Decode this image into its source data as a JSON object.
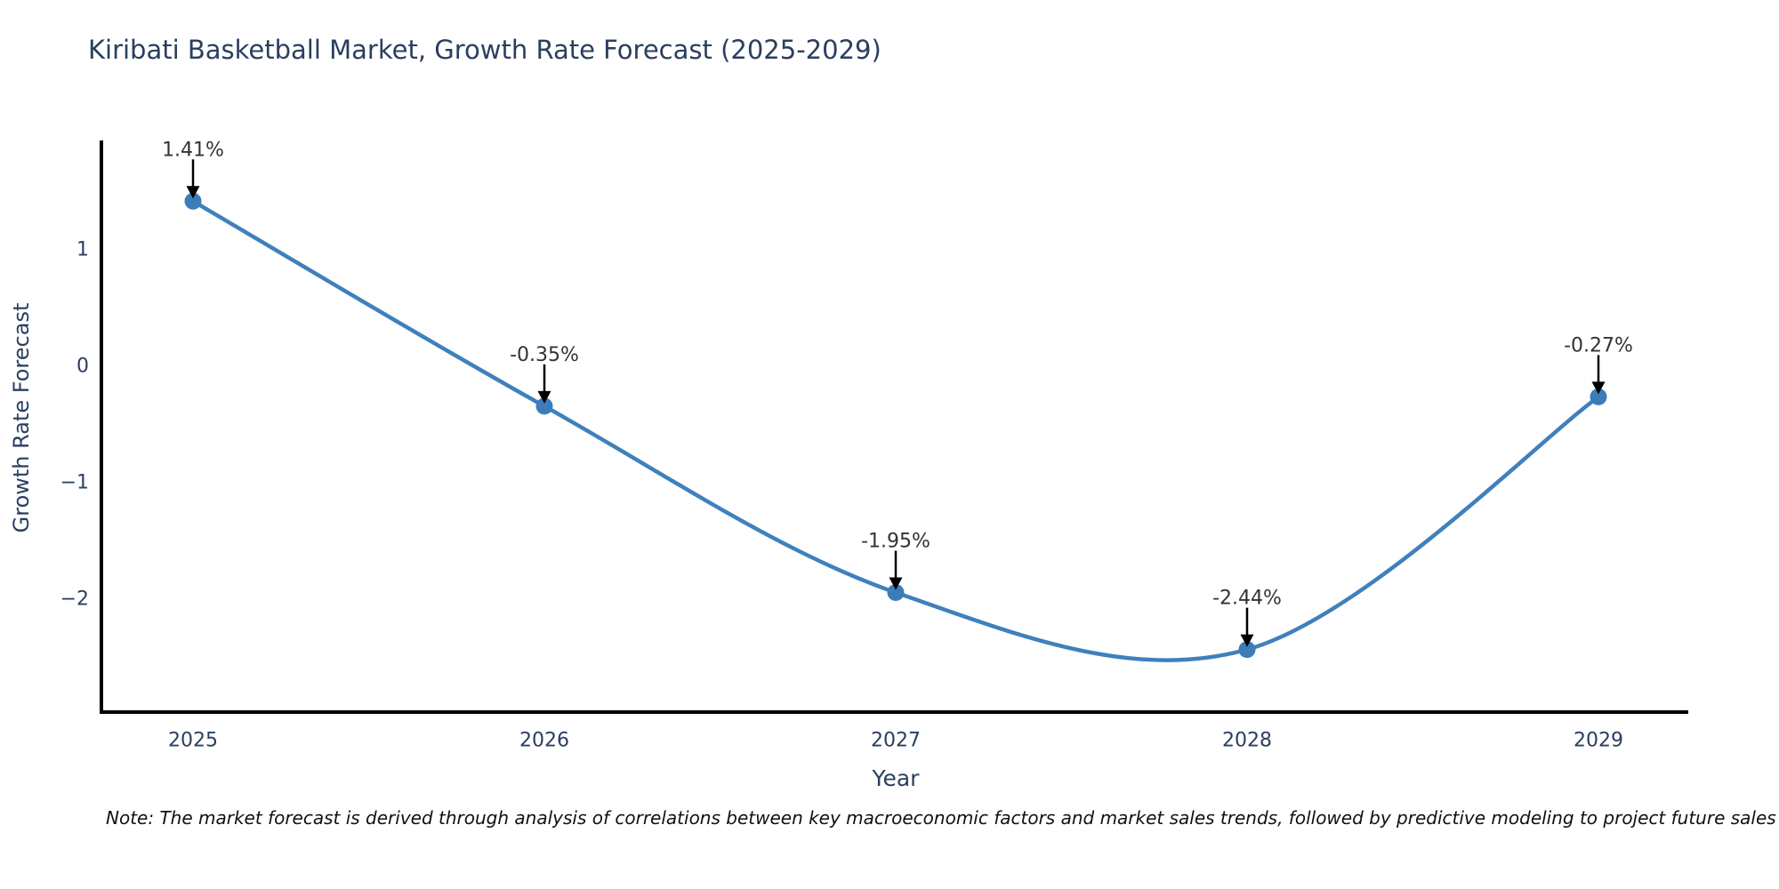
{
  "title": "Kiribati Basketball Market, Growth Rate Forecast (2025-2029)",
  "note": "Note: The market forecast is derived through analysis of correlations between key macroeconomic factors and market sales trends, followed by predictive modeling to project future sales",
  "colors": {
    "line": "#3f80bd",
    "marker": "#3c7cb8",
    "axis": "#000000",
    "text": "#2a3f5f",
    "annotation": "#333333"
  },
  "chart_data": {
    "type": "line",
    "line_shape": "spline",
    "title": "Kiribati Basketball Market, Growth Rate Forecast (2025-2029)",
    "xlabel": "Year",
    "ylabel": "Growth Rate Forecast",
    "categories": [
      "2025",
      "2026",
      "2027",
      "2028",
      "2029"
    ],
    "values": [
      1.41,
      -0.35,
      -1.95,
      -2.44,
      -0.27
    ],
    "point_labels": [
      "1.41%",
      "-0.35%",
      "-1.95%",
      "-2.44%",
      "-0.27%"
    ],
    "yticks": [
      {
        "value": 1,
        "label": "1"
      },
      {
        "value": 0,
        "label": "0"
      },
      {
        "value": -1,
        "label": "−1"
      },
      {
        "value": -2,
        "label": "−2"
      }
    ],
    "ylim": [
      -2.98,
      1.92
    ],
    "grid": false,
    "legend": false,
    "annotation_arrows": "black arrows pointing down onto each data point"
  }
}
